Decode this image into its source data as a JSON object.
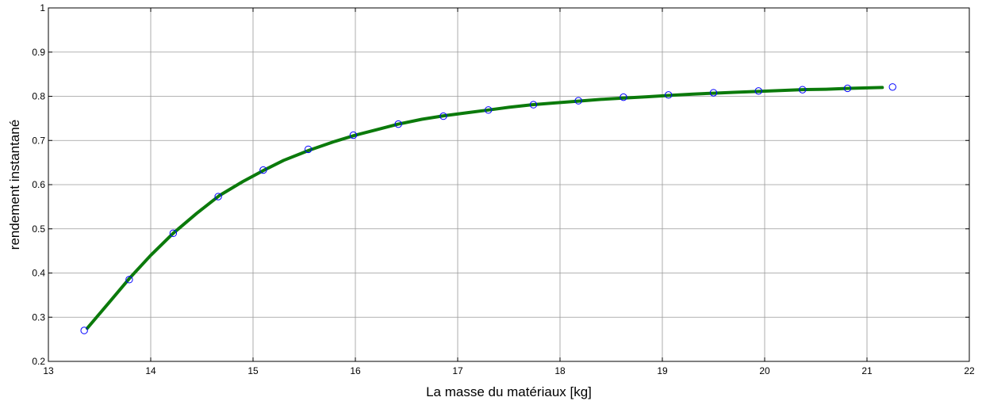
{
  "chart_data": {
    "type": "line",
    "title": "",
    "xlabel": "La masse du matériaux [kg]",
    "ylabel": "rendement instantané",
    "xlim": [
      13,
      22
    ],
    "ylim": [
      0.2,
      1
    ],
    "xticks": [
      "13",
      "14",
      "15",
      "16",
      "17",
      "18",
      "19",
      "20",
      "21",
      "22"
    ],
    "yticks": [
      "0.2",
      "0.3",
      "0.4",
      "0.5",
      "0.6",
      "0.7",
      "0.8",
      "0.9",
      "1"
    ],
    "grid": true,
    "series": [
      {
        "kind": "line",
        "color": "#0b7a0b",
        "x": [
          13.38,
          13.6,
          13.8,
          14.0,
          14.22,
          14.45,
          14.67,
          14.9,
          15.1,
          15.3,
          15.55,
          15.8,
          16.0,
          16.2,
          16.42,
          16.65,
          16.87,
          17.1,
          17.3,
          17.5,
          17.73,
          17.95,
          18.18,
          18.4,
          18.62,
          18.85,
          19.07,
          19.3,
          19.5,
          19.7,
          19.93,
          20.15,
          20.37,
          20.6,
          20.82,
          21.15
        ],
        "y": [
          0.275,
          0.335,
          0.39,
          0.44,
          0.49,
          0.535,
          0.575,
          0.607,
          0.632,
          0.655,
          0.678,
          0.698,
          0.712,
          0.724,
          0.737,
          0.748,
          0.756,
          0.763,
          0.769,
          0.775,
          0.781,
          0.785,
          0.789,
          0.793,
          0.796,
          0.799,
          0.802,
          0.805,
          0.807,
          0.809,
          0.811,
          0.813,
          0.815,
          0.816,
          0.818,
          0.82
        ]
      },
      {
        "kind": "markers",
        "color": "#0000ff",
        "x": [
          13.35,
          13.79,
          14.22,
          14.66,
          15.1,
          15.54,
          15.98,
          16.42,
          16.86,
          17.3,
          17.74,
          18.18,
          18.62,
          19.06,
          19.5,
          19.94,
          20.37,
          20.81,
          21.25
        ],
        "y": [
          0.27,
          0.385,
          0.49,
          0.573,
          0.633,
          0.68,
          0.712,
          0.737,
          0.755,
          0.769,
          0.781,
          0.79,
          0.798,
          0.803,
          0.808,
          0.812,
          0.815,
          0.818,
          0.821
        ]
      }
    ]
  }
}
